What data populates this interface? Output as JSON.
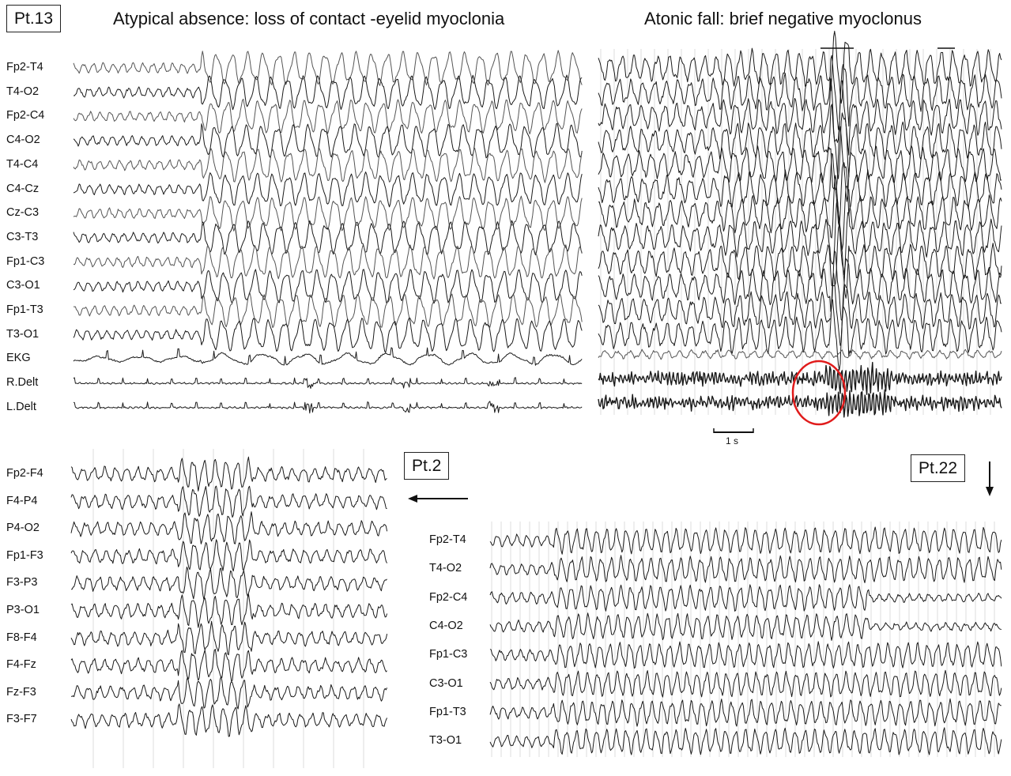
{
  "panels": [
    {
      "patient": "Pt.13",
      "title": "Atypical absence: loss of contact -eyelid myoclonia",
      "channels": [
        "Fp2-T4",
        "T4-O2",
        "Fp2-C4",
        "C4-O2",
        "T4-C4",
        "C4-Cz",
        "Cz-C3",
        "C3-T3",
        "Fp1-C3",
        "C3-O1",
        "Fp1-T3",
        "T3-O1",
        "EKG",
        "R.Delt",
        "L.Delt"
      ]
    },
    {
      "title": "Atonic fall: brief negative myoclonus",
      "scale_bar": "1 s"
    },
    {
      "patient": "Pt.2",
      "channels": [
        "Fp2-F4",
        "F4-P4",
        "P4-O2",
        "Fp1-F3",
        "F3-P3",
        "P3-O1",
        "F8-F4",
        "F4-Fz",
        "Fz-F3",
        "F3-F7"
      ]
    },
    {
      "patient": "Pt.22",
      "channels": [
        "Fp2-T4",
        "T4-O2",
        "Fp2-C4",
        "C4-O2",
        "Fp1-C3",
        "C3-O1",
        "Fp1-T3",
        "T3-O1"
      ]
    }
  ],
  "colors": {
    "trace": "#1a1a1a",
    "trace_grey": "#555555",
    "highlight_circle": "#e01b1b",
    "grid": "#cfcfcf"
  }
}
